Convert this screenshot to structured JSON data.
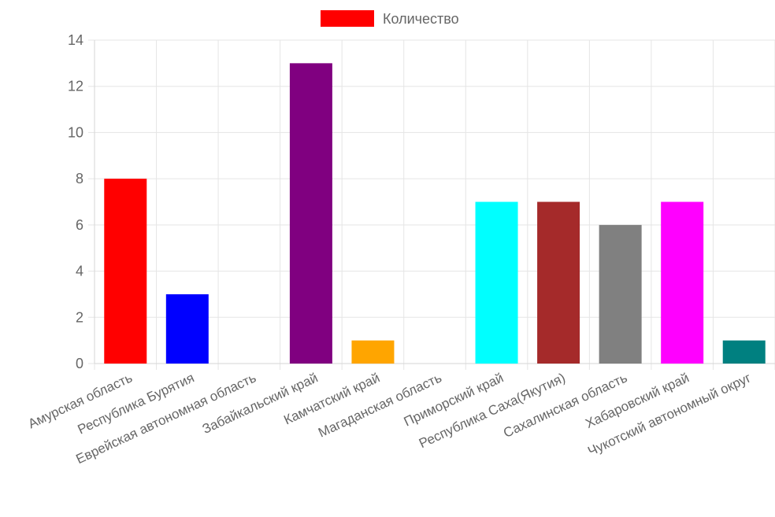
{
  "chart_data": {
    "type": "bar",
    "legend": {
      "label": "Количество",
      "color": "#ff0000",
      "placement": "top-center"
    },
    "categories": [
      "Амурская область",
      "Республика Бурятия",
      "Еврейская автономная область",
      "Забайкальский край",
      "Камчатский край",
      "Магаданская область",
      "Приморский край",
      "Республика Саха(Якутия)",
      "Сахалинская область",
      "Хабаровский край",
      "Чукотский автономный округ"
    ],
    "series": [
      {
        "name": "Количество",
        "values": [
          8,
          3,
          0,
          13,
          1,
          0,
          7,
          7,
          6,
          7,
          1
        ]
      }
    ],
    "bar_colors": [
      "#ff0000",
      "#0000ff",
      "#808080",
      "#800080",
      "#ffa500",
      "#ffff00",
      "#00ffff",
      "#a52a2a",
      "#808080",
      "#ff00ff",
      "#008080"
    ],
    "ylim": [
      0,
      14
    ],
    "yticks": [
      "0",
      "2",
      "4",
      "6",
      "8",
      "10",
      "12",
      "14"
    ],
    "grid": true
  }
}
